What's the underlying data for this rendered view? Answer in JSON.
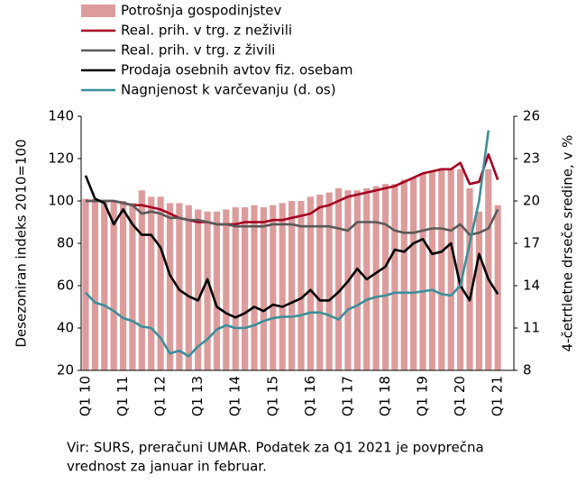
{
  "chart_data": {
    "type": "bar-line",
    "ylabel": "Desezoniran indeks 2010=100",
    "y2label": "4-četrtletne drseče sredine, v %",
    "footnote": [
      "Vir: SURS, preračuni UMAR. Podatek za Q1 2021 je povprečna",
      "vrednost za januar in februar."
    ],
    "categories": [
      "Q1 10",
      null,
      null,
      null,
      "Q1 11",
      null,
      null,
      null,
      "Q1 12",
      null,
      null,
      null,
      "Q1 13",
      null,
      null,
      null,
      "Q1 14",
      null,
      null,
      null,
      "Q1 15",
      null,
      null,
      null,
      "Q1 16",
      null,
      null,
      null,
      "Q1 17",
      null,
      null,
      null,
      "Q1 18",
      null,
      null,
      null,
      "Q1 19",
      null,
      null,
      null,
      "Q1 20",
      null,
      null,
      null,
      "Q1 21"
    ],
    "ylim": [
      20,
      140
    ],
    "yticks": [
      20,
      40,
      60,
      80,
      100,
      120,
      140
    ],
    "y2lim": [
      8,
      26
    ],
    "y2ticks": [
      8,
      11,
      14,
      17,
      20,
      23,
      26
    ],
    "series": [
      {
        "name": "Potrošnja gospodinjstev",
        "kind": "bar",
        "color": "#dd9c9c",
        "values": [
          101,
          101,
          100,
          100,
          100,
          99,
          105,
          102,
          102,
          99,
          99,
          98,
          96,
          95,
          95,
          96,
          97,
          97,
          98,
          97,
          98,
          99,
          100,
          100,
          102,
          103,
          104,
          106,
          105,
          105,
          106,
          107,
          108,
          108,
          110,
          111,
          113,
          114,
          115,
          115,
          115,
          106,
          95,
          115,
          98
        ]
      },
      {
        "name": "Real. prih. v trg. z neživili",
        "kind": "line",
        "color": "#a50021",
        "values": [
          100,
          100,
          100,
          100,
          99,
          98,
          98,
          97,
          96,
          94,
          92,
          91,
          90,
          90,
          89,
          89,
          89,
          90,
          90,
          90,
          91,
          91,
          92,
          93,
          94,
          97,
          98,
          100,
          102,
          103,
          104,
          105,
          106,
          107,
          109,
          111,
          113,
          114,
          115,
          115,
          118,
          108,
          109,
          122,
          110
        ]
      },
      {
        "name": "Real. prih. v trg. z živili",
        "kind": "line",
        "color": "#595959",
        "values": [
          100,
          100,
          100,
          100,
          99,
          98,
          94,
          95,
          94,
          92,
          92,
          91,
          91,
          90,
          89,
          89,
          88,
          88,
          88,
          88,
          89,
          89,
          89,
          88,
          88,
          88,
          88,
          87,
          86,
          90,
          90,
          90,
          89,
          86,
          85,
          85,
          86,
          87,
          87,
          86,
          89,
          84,
          85,
          87,
          96
        ]
      },
      {
        "name": "Prodaja osebnih avtov fiz. osebam",
        "kind": "line",
        "color": "#000000",
        "values": [
          112,
          101,
          99,
          89,
          96,
          89,
          84,
          84,
          78,
          65,
          58,
          55,
          53,
          63,
          50,
          47,
          45,
          47,
          50,
          48,
          51,
          50,
          52,
          54,
          58,
          53,
          53,
          57,
          62,
          68,
          63,
          66,
          69,
          77,
          76,
          80,
          82,
          75,
          76,
          80,
          60,
          53,
          75,
          63,
          56
        ]
      },
      {
        "name": "Nagnjenost k varčevanju (d. os)",
        "kind": "line",
        "axis": "y2",
        "color": "#3a8f9a",
        "values": [
          13.5,
          12.8,
          12.6,
          12.2,
          11.7,
          11.5,
          11.1,
          11.0,
          10.3,
          9.2,
          9.4,
          9.0,
          9.7,
          10.2,
          10.9,
          11.2,
          11.0,
          11.0,
          11.2,
          11.5,
          11.7,
          11.8,
          11.8,
          11.9,
          12.1,
          12.1,
          11.9,
          11.6,
          12.3,
          12.6,
          13.0,
          13.2,
          13.3,
          13.5,
          13.5,
          13.5,
          13.6,
          13.7,
          13.4,
          13.3,
          14.0,
          17.0,
          20.0,
          25.0,
          null
        ]
      }
    ]
  }
}
